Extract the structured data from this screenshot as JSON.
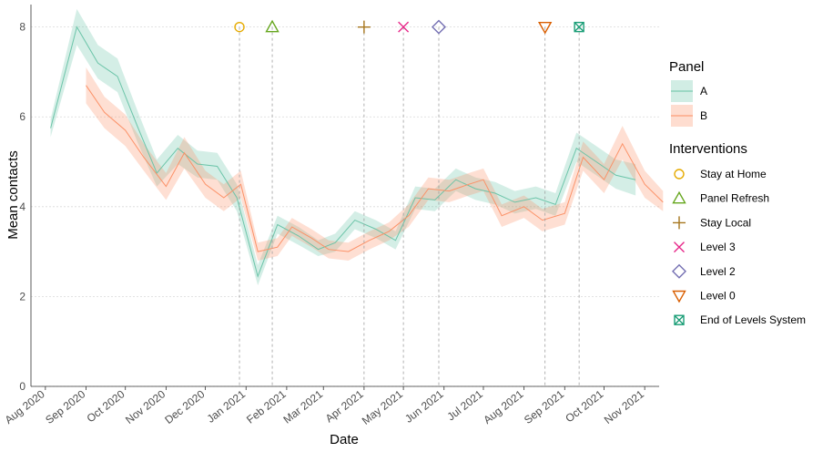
{
  "chart_data": {
    "type": "line",
    "title": "",
    "xlabel": "Date",
    "ylabel": "Mean contacts",
    "ylim": [
      0,
      8.5
    ],
    "y_ticks": [
      0,
      2,
      4,
      6,
      8
    ],
    "x_ticks": [
      {
        "date": "2020-08-01",
        "label": "Aug 2020"
      },
      {
        "date": "2020-09-01",
        "label": "Sep 2020"
      },
      {
        "date": "2020-10-01",
        "label": "Oct 2020"
      },
      {
        "date": "2020-11-01",
        "label": "Nov 2020"
      },
      {
        "date": "2020-12-01",
        "label": "Dec 2020"
      },
      {
        "date": "2021-01-01",
        "label": "Jan 2021"
      },
      {
        "date": "2021-02-01",
        "label": "Feb 2021"
      },
      {
        "date": "2021-03-01",
        "label": "Mar 2021"
      },
      {
        "date": "2021-04-01",
        "label": "Apr 2021"
      },
      {
        "date": "2021-05-01",
        "label": "May 2021"
      },
      {
        "date": "2021-06-01",
        "label": "Jun 2021"
      },
      {
        "date": "2021-07-01",
        "label": "Jul 2021"
      },
      {
        "date": "2021-08-01",
        "label": "Aug 2021"
      },
      {
        "date": "2021-09-01",
        "label": "Sep 2021"
      },
      {
        "date": "2021-10-01",
        "label": "Oct 2021"
      },
      {
        "date": "2021-11-01",
        "label": "Nov 2021"
      }
    ],
    "grid": true,
    "legend_position": "right",
    "series": [
      {
        "name": "A",
        "color": "#66c2a5",
        "points": [
          {
            "x": "2020-08-05",
            "y": 5.75,
            "lo": 5.55,
            "hi": 5.95
          },
          {
            "x": "2020-08-25",
            "y": 8.0,
            "lo": 7.6,
            "hi": 8.4
          },
          {
            "x": "2020-09-10",
            "y": 7.2,
            "lo": 6.85,
            "hi": 7.6
          },
          {
            "x": "2020-09-25",
            "y": 6.9,
            "lo": 6.55,
            "hi": 7.3
          },
          {
            "x": "2020-10-10",
            "y": 5.8,
            "lo": 5.45,
            "hi": 6.15
          },
          {
            "x": "2020-10-25",
            "y": 4.75,
            "lo": 4.45,
            "hi": 5.05
          },
          {
            "x": "2020-11-10",
            "y": 5.3,
            "lo": 4.95,
            "hi": 5.6
          },
          {
            "x": "2020-11-25",
            "y": 4.95,
            "lo": 4.65,
            "hi": 5.25
          },
          {
            "x": "2020-12-10",
            "y": 4.9,
            "lo": 4.6,
            "hi": 5.2
          },
          {
            "x": "2020-12-25",
            "y": 4.2,
            "lo": 3.9,
            "hi": 4.5
          },
          {
            "x": "2021-01-10",
            "y": 2.45,
            "lo": 2.25,
            "hi": 2.7
          },
          {
            "x": "2021-01-25",
            "y": 3.6,
            "lo": 3.4,
            "hi": 3.8
          },
          {
            "x": "2021-02-10",
            "y": 3.35,
            "lo": 3.15,
            "hi": 3.55
          },
          {
            "x": "2021-02-25",
            "y": 3.05,
            "lo": 2.9,
            "hi": 3.25
          },
          {
            "x": "2021-03-10",
            "y": 3.2,
            "lo": 3.0,
            "hi": 3.4
          },
          {
            "x": "2021-03-25",
            "y": 3.7,
            "lo": 3.5,
            "hi": 3.9
          },
          {
            "x": "2021-04-10",
            "y": 3.5,
            "lo": 3.3,
            "hi": 3.7
          },
          {
            "x": "2021-04-25",
            "y": 3.25,
            "lo": 3.05,
            "hi": 3.45
          },
          {
            "x": "2021-05-10",
            "y": 4.2,
            "lo": 3.95,
            "hi": 4.45
          },
          {
            "x": "2021-05-25",
            "y": 4.15,
            "lo": 3.9,
            "hi": 4.4
          },
          {
            "x": "2021-06-10",
            "y": 4.6,
            "lo": 4.35,
            "hi": 4.85
          },
          {
            "x": "2021-06-25",
            "y": 4.4,
            "lo": 4.15,
            "hi": 4.65
          },
          {
            "x": "2021-07-10",
            "y": 4.3,
            "lo": 4.05,
            "hi": 4.55
          },
          {
            "x": "2021-07-25",
            "y": 4.1,
            "lo": 3.85,
            "hi": 4.35
          },
          {
            "x": "2021-08-10",
            "y": 4.2,
            "lo": 3.95,
            "hi": 4.45
          },
          {
            "x": "2021-08-25",
            "y": 4.05,
            "lo": 3.8,
            "hi": 4.3
          },
          {
            "x": "2021-09-10",
            "y": 5.3,
            "lo": 5.0,
            "hi": 5.65
          },
          {
            "x": "2021-09-25",
            "y": 5.0,
            "lo": 4.7,
            "hi": 5.35
          },
          {
            "x": "2021-10-10",
            "y": 4.7,
            "lo": 4.4,
            "hi": 5.05
          },
          {
            "x": "2021-10-25",
            "y": 4.6,
            "lo": 4.25,
            "hi": 4.95
          }
        ]
      },
      {
        "name": "B",
        "color": "#fc8d62",
        "points": [
          {
            "x": "2020-09-01",
            "y": 6.7,
            "lo": 6.3,
            "hi": 7.1
          },
          {
            "x": "2020-09-15",
            "y": 6.1,
            "lo": 5.75,
            "hi": 6.45
          },
          {
            "x": "2020-10-01",
            "y": 5.7,
            "lo": 5.35,
            "hi": 6.05
          },
          {
            "x": "2020-10-15",
            "y": 5.1,
            "lo": 4.8,
            "hi": 5.4
          },
          {
            "x": "2020-11-01",
            "y": 4.45,
            "lo": 4.15,
            "hi": 4.75
          },
          {
            "x": "2020-11-15",
            "y": 5.2,
            "lo": 4.85,
            "hi": 5.55
          },
          {
            "x": "2020-12-01",
            "y": 4.5,
            "lo": 4.2,
            "hi": 4.8
          },
          {
            "x": "2020-12-15",
            "y": 4.2,
            "lo": 3.9,
            "hi": 4.5
          },
          {
            "x": "2020-12-28",
            "y": 4.5,
            "lo": 4.2,
            "hi": 4.8
          },
          {
            "x": "2021-01-10",
            "y": 3.0,
            "lo": 2.8,
            "hi": 3.2
          },
          {
            "x": "2021-01-25",
            "y": 3.1,
            "lo": 2.9,
            "hi": 3.3
          },
          {
            "x": "2021-02-05",
            "y": 3.55,
            "lo": 3.35,
            "hi": 3.75
          },
          {
            "x": "2021-02-20",
            "y": 3.3,
            "lo": 3.1,
            "hi": 3.5
          },
          {
            "x": "2021-03-05",
            "y": 3.05,
            "lo": 2.85,
            "hi": 3.25
          },
          {
            "x": "2021-03-20",
            "y": 3.0,
            "lo": 2.8,
            "hi": 3.2
          },
          {
            "x": "2021-04-05",
            "y": 3.25,
            "lo": 3.05,
            "hi": 3.45
          },
          {
            "x": "2021-04-20",
            "y": 3.45,
            "lo": 3.25,
            "hi": 3.65
          },
          {
            "x": "2021-05-05",
            "y": 3.8,
            "lo": 3.55,
            "hi": 4.05
          },
          {
            "x": "2021-05-20",
            "y": 4.4,
            "lo": 4.15,
            "hi": 4.65
          },
          {
            "x": "2021-06-05",
            "y": 4.35,
            "lo": 4.1,
            "hi": 4.6
          },
          {
            "x": "2021-06-20",
            "y": 4.5,
            "lo": 4.25,
            "hi": 4.75
          },
          {
            "x": "2021-07-01",
            "y": 4.6,
            "lo": 4.35,
            "hi": 4.85
          },
          {
            "x": "2021-07-15",
            "y": 3.8,
            "lo": 3.55,
            "hi": 4.05
          },
          {
            "x": "2021-08-01",
            "y": 4.0,
            "lo": 3.75,
            "hi": 4.25
          },
          {
            "x": "2021-08-15",
            "y": 3.7,
            "lo": 3.45,
            "hi": 3.95
          },
          {
            "x": "2021-09-01",
            "y": 3.85,
            "lo": 3.6,
            "hi": 4.1
          },
          {
            "x": "2021-09-15",
            "y": 5.1,
            "lo": 4.8,
            "hi": 5.45
          },
          {
            "x": "2021-10-01",
            "y": 4.6,
            "lo": 4.3,
            "hi": 4.95
          },
          {
            "x": "2021-10-15",
            "y": 5.4,
            "lo": 5.05,
            "hi": 5.8
          },
          {
            "x": "2021-11-01",
            "y": 4.5,
            "lo": 4.2,
            "hi": 4.8
          },
          {
            "x": "2021-11-15",
            "y": 4.1,
            "lo": 3.9,
            "hi": 4.35
          }
        ]
      }
    ],
    "interventions": [
      {
        "name": "Stay at Home",
        "date": "2020-12-27",
        "y": 8,
        "shape": "circle",
        "color": "#e6ab02"
      },
      {
        "name": "Panel Refresh",
        "date": "2021-01-21",
        "y": 8,
        "shape": "triangle-up",
        "color": "#66a61e"
      },
      {
        "name": "Stay Local",
        "date": "2021-04-01",
        "y": 8,
        "shape": "plus",
        "color": "#a6761d"
      },
      {
        "name": "Level 3",
        "date": "2021-05-01",
        "y": 8,
        "shape": "cross",
        "color": "#e7298a"
      },
      {
        "name": "Level 2",
        "date": "2021-05-28",
        "y": 8,
        "shape": "diamond",
        "color": "#7570b3"
      },
      {
        "name": "Level 0",
        "date": "2021-08-17",
        "y": 8,
        "shape": "triangle-down",
        "color": "#d95f02"
      },
      {
        "name": "End of Levels System",
        "date": "2021-09-12",
        "y": 8,
        "shape": "square-cross",
        "color": "#1b9e77"
      }
    ]
  },
  "legend": {
    "panel_title": "Panel",
    "panel_items": [
      {
        "label": "A",
        "color": "#66c2a5"
      },
      {
        "label": "B",
        "color": "#fc8d62"
      }
    ],
    "interventions_title": "Interventions"
  }
}
